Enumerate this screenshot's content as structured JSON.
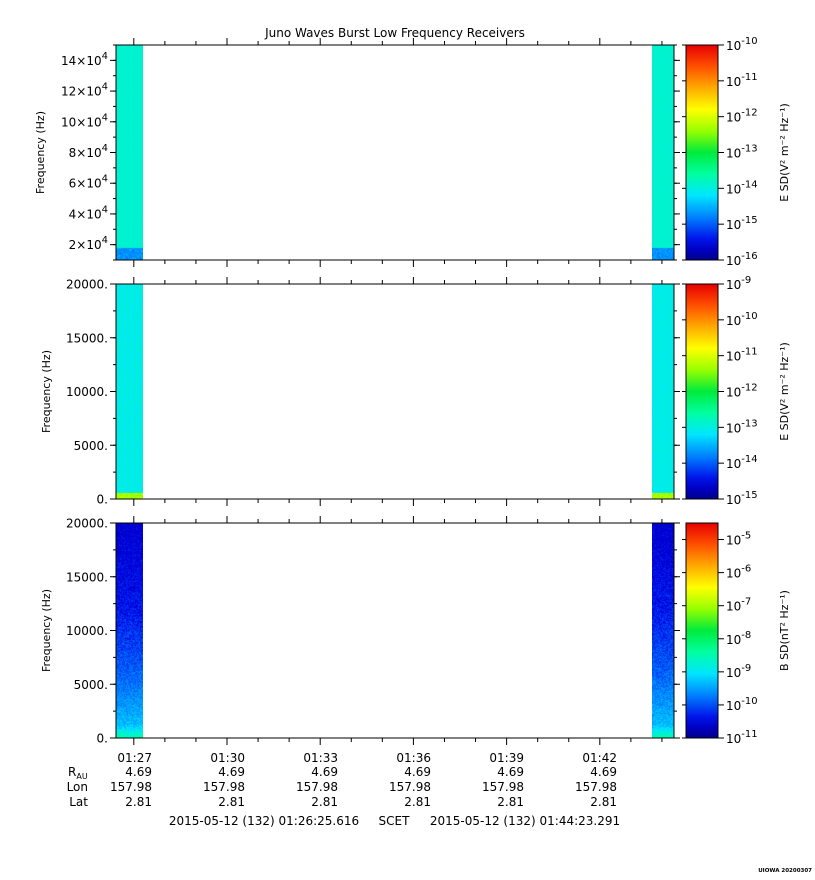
{
  "title": "Juno Waves Burst Low Frequency Receivers",
  "footer_credit": "UIOWA 20200307",
  "time_range": {
    "start": "2015-05-12 (132) 01:26:25.616",
    "label": "SCET",
    "end": "2015-05-12 (132) 01:44:23.291"
  },
  "ephemeris": {
    "row_labels": {
      "r": "R",
      "r_sub": "AU",
      "lon": "Lon",
      "lat": "Lat"
    },
    "columns": [
      {
        "time": "01:27",
        "r": "4.69",
        "lon": "157.98",
        "lat": "2.81"
      },
      {
        "time": "01:30",
        "r": "4.69",
        "lon": "157.98",
        "lat": "2.81"
      },
      {
        "time": "01:33",
        "r": "4.69",
        "lon": "157.98",
        "lat": "2.81"
      },
      {
        "time": "01:36",
        "r": "4.69",
        "lon": "157.98",
        "lat": "2.81"
      },
      {
        "time": "01:39",
        "r": "4.69",
        "lon": "157.98",
        "lat": "2.81"
      },
      {
        "time": "01:42",
        "r": "4.69",
        "lon": "157.98",
        "lat": "2.81"
      }
    ]
  },
  "chart_data": [
    {
      "type": "heatmap",
      "title": "Juno Waves Burst Low Frequency Receivers",
      "xlabel": "",
      "ylabel": "Frequency (Hz)",
      "x_range": [
        "01:26:25.616",
        "01:44:23.291"
      ],
      "ylim": [
        10000,
        150000
      ],
      "y_ticks": [
        {
          "mant": "2",
          "exp": "4",
          "value": 20000
        },
        {
          "mant": "4",
          "exp": "4",
          "value": 40000
        },
        {
          "mant": "6",
          "exp": "4",
          "value": 60000
        },
        {
          "mant": "8",
          "exp": "4",
          "value": 80000
        },
        {
          "mant": "10",
          "exp": "4",
          "value": 100000
        },
        {
          "mant": "12",
          "exp": "4",
          "value": 120000
        },
        {
          "mant": "14",
          "exp": "4",
          "value": 140000
        }
      ],
      "data_intervals": [
        [
          "01:26:25.616",
          "01:27:17"
        ],
        [
          "01:43:41",
          "01:44:23.291"
        ]
      ],
      "colorbar": {
        "label": "E SD(V² m⁻² Hz⁻¹)",
        "scale": "log",
        "range_exp": [
          -16,
          -10
        ],
        "tick_exps": [
          "-10",
          "-11",
          "-12",
          "-13",
          "-14",
          "-15",
          "-16"
        ]
      },
      "profile": {
        "base": -13.9,
        "spread": 0.05,
        "low_band": [
          -14.7,
          0.06
        ]
      }
    },
    {
      "type": "heatmap",
      "xlabel": "",
      "ylabel": "Frequency (Hz)",
      "x_range": [
        "01:26:25.616",
        "01:44:23.291"
      ],
      "ylim": [
        0,
        20000
      ],
      "y_ticks": [
        {
          "label": "0.",
          "value": 0
        },
        {
          "label": "5000.",
          "value": 5000
        },
        {
          "label": "10000.",
          "value": 10000
        },
        {
          "label": "15000.",
          "value": 15000
        },
        {
          "label": "20000.",
          "value": 20000
        }
      ],
      "data_intervals": [
        [
          "01:26:25.616",
          "01:27:17"
        ],
        [
          "01:43:41",
          "01:44:23.291"
        ]
      ],
      "colorbar": {
        "label": "E SD(V² m⁻² Hz⁻¹)",
        "scale": "log",
        "range_exp": [
          -15,
          -9
        ],
        "tick_exps": [
          "-9",
          "-10",
          "-11",
          "-12",
          "-13",
          "-14",
          "-15"
        ]
      },
      "profile": {
        "base": -13.05,
        "spread": 0.12,
        "low_band": [
          -11.3,
          0.03
        ]
      }
    },
    {
      "type": "heatmap",
      "xlabel": "",
      "ylabel": "Frequency (Hz)",
      "x_range": [
        "01:26:25.616",
        "01:44:23.291"
      ],
      "ylim": [
        0,
        20000
      ],
      "y_ticks": [
        {
          "label": "0.",
          "value": 0
        },
        {
          "label": "5000.",
          "value": 5000
        },
        {
          "label": "10000.",
          "value": 10000
        },
        {
          "label": "15000.",
          "value": 15000
        },
        {
          "label": "20000.",
          "value": 20000
        }
      ],
      "data_intervals": [
        [
          "01:26:25.616",
          "01:27:17"
        ],
        [
          "01:43:41",
          "01:44:23.291"
        ]
      ],
      "colorbar": {
        "label": "B SD(nT² Hz⁻¹)",
        "scale": "log",
        "range_exp": [
          -11,
          -4.5
        ],
        "tick_exps": [
          "-5",
          "-6",
          "-7",
          "-8",
          "-9",
          "-10",
          "-11"
        ]
      },
      "profile": {
        "gradient": [
          [
            0,
            -8.4
          ],
          [
            0.06,
            -9.3
          ],
          [
            0.3,
            -9.9
          ],
          [
            0.6,
            -10.35
          ],
          [
            1,
            -10.6
          ]
        ],
        "spread": 0.25
      }
    }
  ]
}
